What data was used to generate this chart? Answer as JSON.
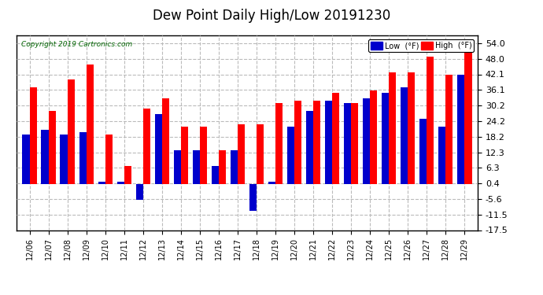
{
  "title": "Dew Point Daily High/Low 20191230",
  "copyright": "Copyright 2019 Cartronics.com",
  "dates": [
    "12/06",
    "12/07",
    "12/08",
    "12/09",
    "12/10",
    "12/11",
    "12/12",
    "12/13",
    "12/14",
    "12/15",
    "12/16",
    "12/17",
    "12/18",
    "12/19",
    "12/20",
    "12/21",
    "12/22",
    "12/23",
    "12/24",
    "12/25",
    "12/26",
    "12/27",
    "12/28",
    "12/29"
  ],
  "low": [
    19,
    21,
    19,
    20,
    1,
    1,
    -6,
    27,
    13,
    13,
    7,
    13,
    -10,
    1,
    22,
    28,
    32,
    31,
    33,
    35,
    37,
    25,
    22,
    42
  ],
  "high": [
    37,
    28,
    40,
    46,
    19,
    7,
    29,
    33,
    22,
    22,
    13,
    23,
    23,
    31,
    32,
    32,
    35,
    31,
    36,
    43,
    43,
    49,
    42,
    54
  ],
  "low_color": "#0000cc",
  "high_color": "#ff0000",
  "ylim_min": -17.5,
  "ylim_max": 57.0,
  "yticks": [
    -17.5,
    -11.5,
    -5.6,
    0.4,
    6.3,
    12.3,
    18.2,
    24.2,
    30.2,
    36.1,
    42.1,
    48.0,
    54.0
  ],
  "background_color": "#ffffff",
  "grid_color": "#bbbbbb",
  "title_fontsize": 12,
  "legend_low_label": "Low  (°F)",
  "legend_high_label": "High  (°F)"
}
